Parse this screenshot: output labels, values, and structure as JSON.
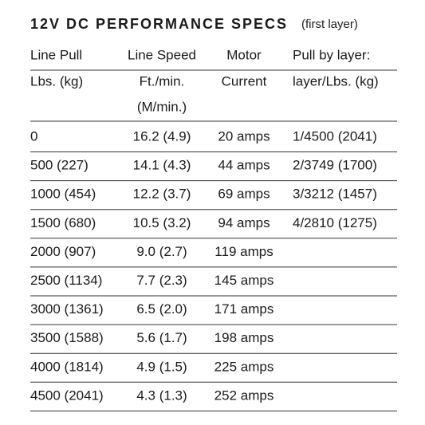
{
  "header": {
    "title": "12V DC PERFORMANCE SPECS",
    "subtitle": "(first layer)"
  },
  "table": {
    "columns": [
      {
        "lines": [
          "Line Pull",
          "Lbs. (kg)"
        ]
      },
      {
        "lines": [
          "Line Speed",
          "Ft./min.",
          "(M/min.)"
        ]
      },
      {
        "lines": [
          "Motor",
          "Current"
        ]
      },
      {
        "lines": [
          "Pull by layer:",
          "layer/Lbs. (kg)"
        ]
      }
    ],
    "rows": [
      [
        "0",
        "16.2 (4.9)",
        "20 amps",
        "1/4500 (2041)"
      ],
      [
        "500 (227)",
        "14.1 (4.3)",
        "44 amps",
        "2/3749 (1700)"
      ],
      [
        "1000 (454)",
        "12.2 (3.7)",
        "69 amps",
        "3/3212 (1457)"
      ],
      [
        "1500 (680)",
        "10.5 (3.2)",
        "94 amps",
        "4/2810 (1275)"
      ],
      [
        "2000 (907)",
        "9.0 (2.7)",
        "119 amps"
      ],
      [
        "2500 (1134)",
        "7.7 (2.3)",
        "145 amps"
      ],
      [
        "3000 (1361)",
        "6.5 (2.0)",
        "171 amps"
      ],
      [
        "3500 (1588)",
        "5.6 (1.7)",
        "198 amps"
      ],
      [
        "4000 (1814)",
        "4.9 (1.5)",
        "225 amps"
      ],
      [
        "4500 (2041)",
        "4.3 (1.3)",
        "252 amps"
      ]
    ]
  }
}
